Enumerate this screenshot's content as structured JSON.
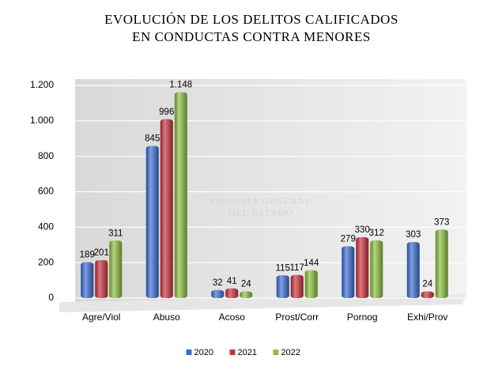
{
  "chart_data": {
    "type": "bar",
    "title": [
      "EVOLUCIÓN DE LOS DELITOS CALIFICADOS",
      "EN CONDUCTAS CONTRA MENORES"
    ],
    "watermark": [
      "FISCALÍA GENERAL",
      "DEL ESTADO"
    ],
    "categories": [
      "Agre/Viol",
      "Abuso",
      "Acoso",
      "Prost/Corr",
      "Pornog",
      "Exhi/Prov"
    ],
    "series": [
      {
        "name": "2020",
        "color": "#3a6cd4",
        "values": [
          189,
          845,
          32,
          115,
          279,
          303
        ]
      },
      {
        "name": "2021",
        "color": "#c9313b",
        "values": [
          201,
          996,
          41,
          117,
          330,
          24
        ]
      },
      {
        "name": "2022",
        "color": "#8dbf3c",
        "values": [
          311,
          1148,
          24,
          144,
          312,
          373
        ],
        "value_labels": [
          "311",
          "1.148",
          "24",
          "144",
          "312",
          "373"
        ]
      }
    ],
    "ylim": [
      0,
      1200
    ],
    "yticks": [
      0,
      200,
      400,
      600,
      800,
      {
        "value": 1000,
        "label": "1.000"
      },
      {
        "value": 1200,
        "label": "1.200"
      }
    ],
    "grid": true,
    "legend": "bottom"
  }
}
